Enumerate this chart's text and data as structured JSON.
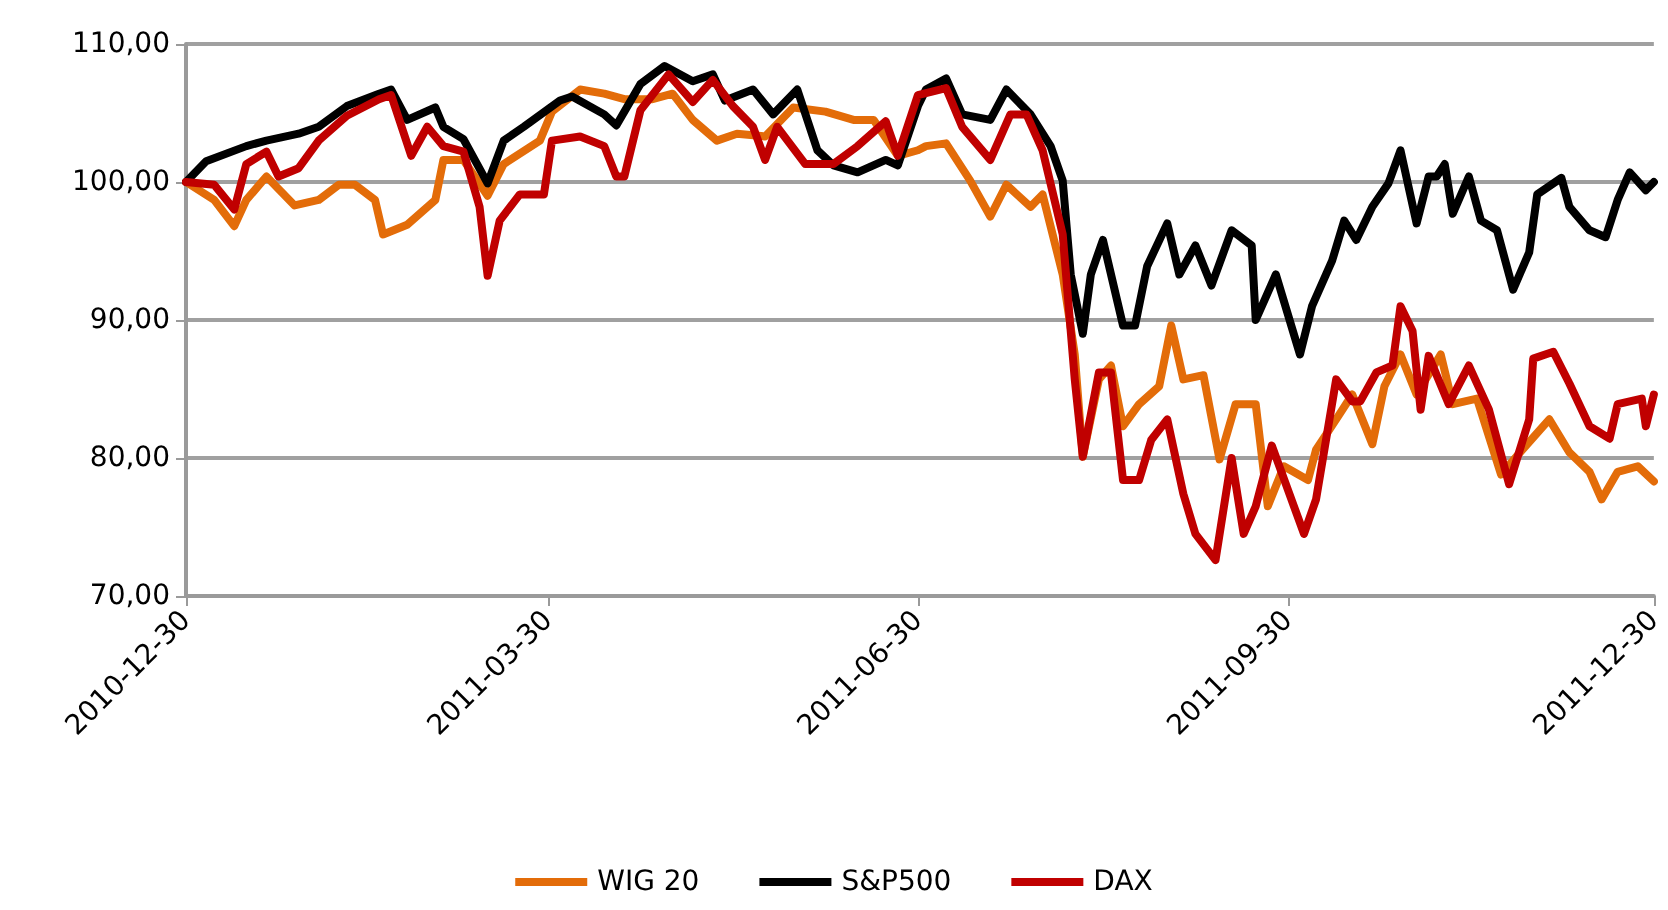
{
  "chart_data": {
    "type": "line",
    "ylim": [
      70,
      110
    ],
    "yticks": [
      {
        "value": 70,
        "label": "70,00"
      },
      {
        "value": 80,
        "label": "80,00"
      },
      {
        "value": 90,
        "label": "90,00"
      },
      {
        "value": 100,
        "label": "100,00"
      },
      {
        "value": 110,
        "label": "110,00"
      }
    ],
    "xlim": [
      "2010-12-30",
      "2011-12-30"
    ],
    "xticks": [
      "2010-12-30",
      "2011-03-30",
      "2011-06-30",
      "2011-09-30",
      "2011-12-30"
    ],
    "grid": "y",
    "legend": "bottom",
    "marker": "none",
    "line_style": "solid",
    "series": [
      {
        "name": "WIG 20",
        "color": "#e36c09",
        "x": [
          "2010-12-30",
          "2011-01-06",
          "2011-01-11",
          "2011-01-14",
          "2011-01-19",
          "2011-01-26",
          "2011-02-01",
          "2011-02-06",
          "2011-02-10",
          "2011-02-15",
          "2011-02-17",
          "2011-02-23",
          "2011-03-02",
          "2011-03-04",
          "2011-03-09",
          "2011-03-15",
          "2011-03-19",
          "2011-03-28",
          "2011-03-31",
          "2011-04-07",
          "2011-04-13",
          "2011-04-18",
          "2011-04-25",
          "2011-04-30",
          "2011-05-05",
          "2011-05-11",
          "2011-05-16",
          "2011-05-23",
          "2011-05-30",
          "2011-06-07",
          "2011-06-14",
          "2011-06-19",
          "2011-06-25",
          "2011-06-30",
          "2011-07-02",
          "2011-07-07",
          "2011-07-13",
          "2011-07-18",
          "2011-07-22",
          "2011-07-28",
          "2011-07-31",
          "2011-08-05",
          "2011-08-08",
          "2011-08-10",
          "2011-08-14",
          "2011-08-17",
          "2011-08-20",
          "2011-08-24",
          "2011-08-29",
          "2011-09-01",
          "2011-09-04",
          "2011-09-09",
          "2011-09-13",
          "2011-09-17",
          "2011-09-22",
          "2011-09-25",
          "2011-09-29",
          "2011-10-05",
          "2011-10-07",
          "2011-10-12",
          "2011-10-16",
          "2011-10-21",
          "2011-10-24",
          "2011-10-28",
          "2011-11-01",
          "2011-11-07",
          "2011-11-10",
          "2011-11-16",
          "2011-11-22",
          "2011-11-27",
          "2011-12-04",
          "2011-12-09",
          "2011-12-14",
          "2011-12-17",
          "2011-12-21",
          "2011-12-26",
          "2011-12-30"
        ],
        "values": [
          100,
          98.7,
          96.8,
          98.7,
          100.4,
          98.3,
          98.7,
          99.8,
          99.8,
          98.7,
          96.2,
          96.9,
          98.7,
          101.6,
          101.6,
          99,
          101.3,
          103,
          105.1,
          106.7,
          106.4,
          106,
          106,
          106.4,
          104.5,
          103,
          103.5,
          103.3,
          105.4,
          105.1,
          104.5,
          104.5,
          101.9,
          102.3,
          102.6,
          102.8,
          100.1,
          97.5,
          99.8,
          98.2,
          99.1,
          93.3,
          87.5,
          80.1,
          85.7,
          86.7,
          82.3,
          83.9,
          85.2,
          89.6,
          85.7,
          86,
          79.9,
          83.9,
          83.9,
          76.5,
          79.4,
          78.4,
          80.6,
          82.8,
          84.6,
          81,
          85.2,
          87.5,
          84.6,
          87.5,
          83.9,
          84.3,
          78.8,
          80.5,
          82.8,
          80.4,
          79,
          77,
          79,
          79.4,
          78.3
        ]
      },
      {
        "name": "S&P500",
        "color": "#000000",
        "x": [
          "2010-12-30",
          "2011-01-04",
          "2011-01-14",
          "2011-01-19",
          "2011-01-27",
          "2011-02-01",
          "2011-02-08",
          "2011-02-16",
          "2011-02-19",
          "2011-02-23",
          "2011-03-02",
          "2011-03-04",
          "2011-03-09",
          "2011-03-15",
          "2011-03-19",
          "2011-03-24",
          "2011-04-02",
          "2011-04-05",
          "2011-04-13",
          "2011-04-16",
          "2011-04-22",
          "2011-04-28",
          "2011-05-05",
          "2011-05-10",
          "2011-05-13",
          "2011-05-20",
          "2011-05-25",
          "2011-05-31",
          "2011-06-05",
          "2011-06-09",
          "2011-06-15",
          "2011-06-22",
          "2011-06-25",
          "2011-06-30",
          "2011-07-02",
          "2011-07-07",
          "2011-07-11",
          "2011-07-18",
          "2011-07-22",
          "2011-07-28",
          "2011-08-02",
          "2011-08-05",
          "2011-08-07",
          "2011-08-10",
          "2011-08-12",
          "2011-08-15",
          "2011-08-20",
          "2011-08-23",
          "2011-08-26",
          "2011-08-31",
          "2011-09-03",
          "2011-09-07",
          "2011-09-11",
          "2011-09-16",
          "2011-09-21",
          "2011-09-22",
          "2011-09-27",
          "2011-10-03",
          "2011-10-06",
          "2011-10-11",
          "2011-10-14",
          "2011-10-17",
          "2011-10-21",
          "2011-10-25",
          "2011-10-28",
          "2011-11-01",
          "2011-11-04",
          "2011-11-06",
          "2011-11-08",
          "2011-11-10",
          "2011-11-14",
          "2011-11-17",
          "2011-11-21",
          "2011-11-25",
          "2011-11-29",
          "2011-12-01",
          "2011-12-07",
          "2011-12-09",
          "2011-12-14",
          "2011-12-18",
          "2011-12-21",
          "2011-12-24",
          "2011-12-28",
          "2011-12-30"
        ],
        "values": [
          100,
          101.5,
          102.6,
          103,
          103.5,
          104,
          105.5,
          106.4,
          106.7,
          104.5,
          105.4,
          104,
          103.1,
          99.9,
          103,
          104,
          105.9,
          106.2,
          104.9,
          104.1,
          107.1,
          108.4,
          107.3,
          107.8,
          105.9,
          106.7,
          104.9,
          106.7,
          102.3,
          101.2,
          100.7,
          101.6,
          101.2,
          105.5,
          106.7,
          107.5,
          104.9,
          104.5,
          106.7,
          104.9,
          102.6,
          100.1,
          93.3,
          89,
          93.3,
          95.8,
          89.6,
          89.6,
          93.9,
          97,
          93.3,
          95.4,
          92.5,
          96.5,
          95.4,
          90,
          93.3,
          87.5,
          91,
          94.3,
          97.2,
          95.8,
          98.2,
          99.9,
          102.3,
          97,
          100.4,
          100.4,
          101.3,
          97.7,
          100.4,
          97.2,
          96.5,
          92.2,
          94.9,
          99.1,
          100.3,
          98.2,
          96.5,
          96,
          98.7,
          100.7,
          99.4,
          100
        ]
      },
      {
        "name": "DAX",
        "color": "#c00000",
        "x": [
          "2010-12-30",
          "2011-01-06",
          "2011-01-11",
          "2011-01-14",
          "2011-01-19",
          "2011-01-22",
          "2011-01-27",
          "2011-02-01",
          "2011-02-08",
          "2011-02-16",
          "2011-02-19",
          "2011-02-24",
          "2011-02-28",
          "2011-03-04",
          "2011-03-09",
          "2011-03-13",
          "2011-03-15",
          "2011-03-18",
          "2011-03-23",
          "2011-03-29",
          "2011-03-31",
          "2011-04-07",
          "2011-04-13",
          "2011-04-16",
          "2011-04-18",
          "2011-04-22",
          "2011-04-29",
          "2011-05-05",
          "2011-05-10",
          "2011-05-15",
          "2011-05-20",
          "2011-05-23",
          "2011-05-26",
          "2011-06-02",
          "2011-06-09",
          "2011-06-15",
          "2011-06-22",
          "2011-06-25",
          "2011-06-30",
          "2011-07-07",
          "2011-07-11",
          "2011-07-18",
          "2011-07-23",
          "2011-07-27",
          "2011-07-31",
          "2011-08-05",
          "2011-08-08",
          "2011-08-10",
          "2011-08-14",
          "2011-08-17",
          "2011-08-20",
          "2011-08-24",
          "2011-08-27",
          "2011-08-31",
          "2011-09-04",
          "2011-09-07",
          "2011-09-12",
          "2011-09-16",
          "2011-09-19",
          "2011-09-22",
          "2011-09-26",
          "2011-10-04",
          "2011-10-07",
          "2011-10-12",
          "2011-10-16",
          "2011-10-18",
          "2011-10-22",
          "2011-10-26",
          "2011-10-28",
          "2011-10-31",
          "2011-11-02",
          "2011-11-04",
          "2011-11-09",
          "2011-11-14",
          "2011-11-19",
          "2011-11-24",
          "2011-11-29",
          "2011-11-30",
          "2011-12-05",
          "2011-12-09",
          "2011-12-14",
          "2011-12-19",
          "2011-12-21",
          "2011-12-27",
          "2011-12-28",
          "2011-12-30"
        ],
        "values": [
          100,
          99.8,
          98,
          101.3,
          102.2,
          100.4,
          101,
          103,
          104.8,
          106,
          106.3,
          101.9,
          104,
          102.6,
          102.2,
          98.2,
          93.2,
          97.2,
          99.1,
          99.1,
          103,
          103.3,
          102.6,
          100.4,
          100.4,
          105.2,
          107.8,
          105.8,
          107.4,
          105.5,
          104,
          101.6,
          104,
          101.3,
          101.3,
          102.6,
          104.4,
          101.9,
          106.3,
          106.8,
          104,
          101.6,
          104.9,
          104.9,
          102.3,
          96.2,
          85.7,
          80.1,
          86.2,
          86.2,
          78.4,
          78.4,
          81.3,
          82.8,
          77.4,
          74.5,
          72.6,
          80,
          74.5,
          76.5,
          80.9,
          74.5,
          77,
          85.7,
          84.1,
          84.1,
          86.2,
          86.7,
          91,
          89.2,
          83.5,
          87.4,
          83.9,
          86.7,
          83.5,
          78.1,
          82.8,
          87.2,
          87.7,
          85.4,
          82.3,
          81.4,
          83.9,
          84.3,
          82.3,
          84.6
        ]
      }
    ]
  }
}
